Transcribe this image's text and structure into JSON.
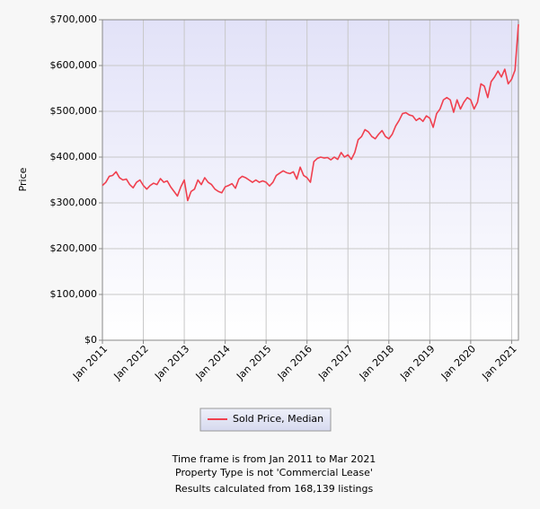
{
  "chart_data": {
    "type": "line",
    "ylabel": "Price",
    "categories": [
      "Jan 2011",
      null,
      null,
      null,
      null,
      null,
      null,
      null,
      null,
      null,
      null,
      null,
      "Jan 2012",
      null,
      null,
      null,
      null,
      null,
      null,
      null,
      null,
      null,
      null,
      null,
      "Jan 2013",
      null,
      null,
      null,
      null,
      null,
      null,
      null,
      null,
      null,
      null,
      null,
      "Jan 2014",
      null,
      null,
      null,
      null,
      null,
      null,
      null,
      null,
      null,
      null,
      null,
      "Jan 2015",
      null,
      null,
      null,
      null,
      null,
      null,
      null,
      null,
      null,
      null,
      null,
      "Jan 2016",
      null,
      null,
      null,
      null,
      null,
      null,
      null,
      null,
      null,
      null,
      null,
      "Jan 2017",
      null,
      null,
      null,
      null,
      null,
      null,
      null,
      null,
      null,
      null,
      null,
      "Jan 2018",
      null,
      null,
      null,
      null,
      null,
      null,
      null,
      null,
      null,
      null,
      null,
      "Jan 2019",
      null,
      null,
      null,
      null,
      null,
      null,
      null,
      null,
      null,
      null,
      null,
      "Jan 2020",
      null,
      null,
      null,
      null,
      null,
      null,
      null,
      null,
      null,
      null,
      null,
      "Jan 2021",
      null,
      null
    ],
    "series": [
      {
        "name": "Sold Price, Median",
        "color": "#f0404f",
        "values": [
          338000,
          345000,
          358000,
          360000,
          368000,
          355000,
          350000,
          352000,
          340000,
          333000,
          345000,
          350000,
          338000,
          330000,
          338000,
          343000,
          340000,
          353000,
          345000,
          348000,
          335000,
          325000,
          315000,
          335000,
          350000,
          305000,
          325000,
          330000,
          350000,
          340000,
          355000,
          345000,
          340000,
          330000,
          325000,
          322000,
          335000,
          338000,
          342000,
          332000,
          352000,
          358000,
          355000,
          350000,
          345000,
          350000,
          345000,
          348000,
          345000,
          337000,
          345000,
          360000,
          365000,
          370000,
          366000,
          364000,
          368000,
          352000,
          378000,
          360000,
          355000,
          345000,
          390000,
          397000,
          400000,
          398000,
          399000,
          394000,
          400000,
          395000,
          410000,
          400000,
          405000,
          395000,
          410000,
          438000,
          445000,
          460000,
          455000,
          445000,
          440000,
          450000,
          458000,
          445000,
          440000,
          450000,
          468000,
          480000,
          495000,
          497000,
          492000,
          490000,
          480000,
          485000,
          478000,
          490000,
          485000,
          465000,
          495000,
          505000,
          525000,
          530000,
          525000,
          498000,
          525000,
          505000,
          520000,
          530000,
          525000,
          505000,
          520000,
          560000,
          555000,
          530000,
          565000,
          575000,
          588000,
          575000,
          592000,
          560000,
          570000,
          590000,
          690000
        ]
      }
    ],
    "ylim": [
      0,
      700000
    ],
    "yticks": [
      {
        "value": 0,
        "label": "$0"
      },
      {
        "value": 100000,
        "label": "$100,000"
      },
      {
        "value": 200000,
        "label": "$200,000"
      },
      {
        "value": 300000,
        "label": "$300,000"
      },
      {
        "value": 400000,
        "label": "$400,000"
      },
      {
        "value": 500000,
        "label": "$500,000"
      },
      {
        "value": 600000,
        "label": "$600,000"
      },
      {
        "value": 700000,
        "label": "$700,000"
      }
    ],
    "grid": true,
    "footer": [
      "Time frame is from Jan 2011 to Mar 2021",
      "Property Type is not 'Commercial Lease'",
      "Results calculated from 168,139 listings"
    ]
  }
}
